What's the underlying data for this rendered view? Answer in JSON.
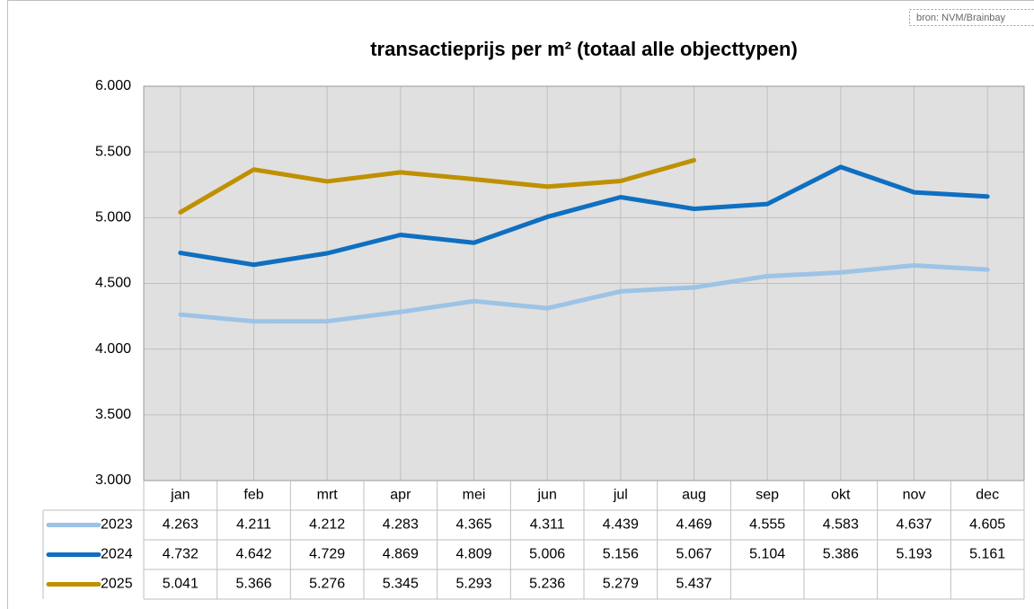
{
  "chart_data": {
    "type": "line",
    "title": "transactieprijs per m² (totaal alle objecttypen)",
    "source": "bron: NVM/Brainbay",
    "categories": [
      "jan",
      "feb",
      "mrt",
      "apr",
      "mei",
      "jun",
      "jul",
      "aug",
      "sep",
      "okt",
      "nov",
      "dec"
    ],
    "series": [
      {
        "name": "2023",
        "color": "#9dc3e6",
        "values": [
          4263,
          4211,
          4212,
          4283,
          4365,
          4311,
          4439,
          4469,
          4555,
          4583,
          4637,
          4605
        ],
        "value_labels": [
          "4.263",
          "4.211",
          "4.212",
          "4.283",
          "4.365",
          "4.311",
          "4.439",
          "4.469",
          "4.555",
          "4.583",
          "4.637",
          "4.605"
        ]
      },
      {
        "name": "2024",
        "color": "#0f6fc0",
        "values": [
          4732,
          4642,
          4729,
          4869,
          4809,
          5006,
          5156,
          5067,
          5104,
          5386,
          5193,
          5161
        ],
        "value_labels": [
          "4.732",
          "4.642",
          "4.729",
          "4.869",
          "4.809",
          "5.006",
          "5.156",
          "5.067",
          "5.104",
          "5.386",
          "5.193",
          "5.161"
        ]
      },
      {
        "name": "2025",
        "color": "#bf9000",
        "values": [
          5041,
          5366,
          5276,
          5345,
          5293,
          5236,
          5279,
          5437,
          null,
          null,
          null,
          null
        ],
        "value_labels": [
          "5.041",
          "5.366",
          "5.276",
          "5.345",
          "5.293",
          "5.236",
          "5.279",
          "5.437",
          null,
          null,
          null,
          null
        ]
      }
    ],
    "ylim": [
      3000,
      6000
    ],
    "yticks": [
      {
        "value": 3000,
        "label": "3.000"
      },
      {
        "value": 3500,
        "label": "3.500"
      },
      {
        "value": 4000,
        "label": "4.000"
      },
      {
        "value": 4500,
        "label": "4.500"
      },
      {
        "value": 5000,
        "label": "5.000"
      },
      {
        "value": 5500,
        "label": "5.500"
      },
      {
        "value": 6000,
        "label": "6.000"
      }
    ],
    "grid": true,
    "data_table": true
  }
}
